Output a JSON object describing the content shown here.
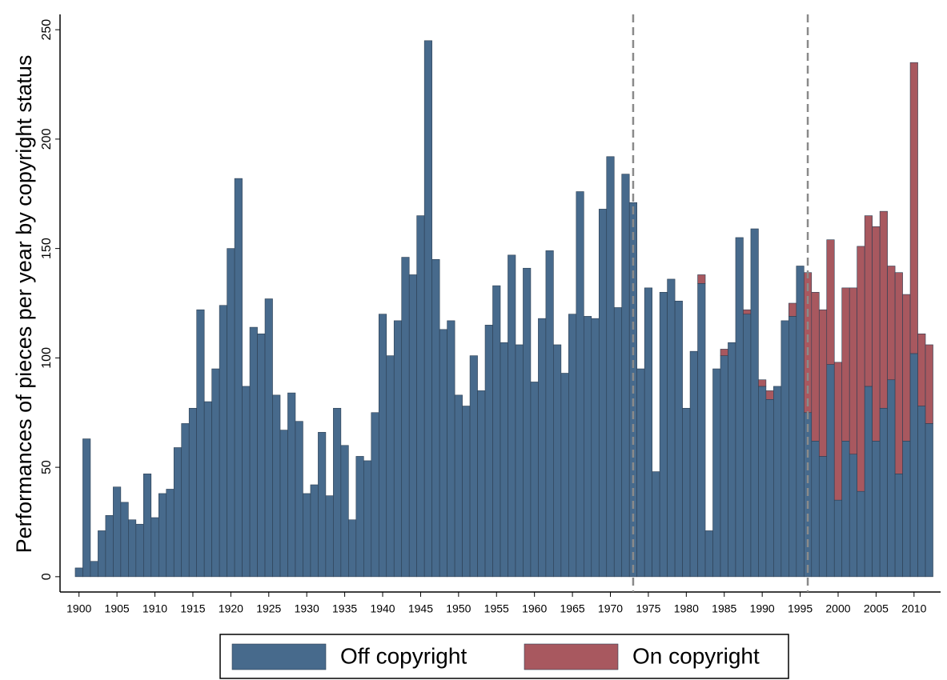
{
  "chart_data": {
    "type": "stacked_bar",
    "ylabel": "Performances of pieces per year by copyright status",
    "x": [
      1900,
      1901,
      1902,
      1903,
      1904,
      1905,
      1906,
      1907,
      1908,
      1909,
      1910,
      1911,
      1912,
      1913,
      1914,
      1915,
      1916,
      1917,
      1918,
      1919,
      1920,
      1921,
      1922,
      1923,
      1924,
      1925,
      1926,
      1927,
      1928,
      1929,
      1930,
      1931,
      1932,
      1933,
      1934,
      1935,
      1936,
      1937,
      1938,
      1939,
      1940,
      1941,
      1942,
      1943,
      1944,
      1945,
      1946,
      1947,
      1948,
      1949,
      1950,
      1951,
      1952,
      1953,
      1954,
      1955,
      1956,
      1957,
      1958,
      1959,
      1960,
      1961,
      1962,
      1963,
      1964,
      1965,
      1966,
      1967,
      1968,
      1969,
      1970,
      1971,
      1972,
      1973,
      1974,
      1975,
      1976,
      1977,
      1978,
      1979,
      1980,
      1981,
      1982,
      1983,
      1984,
      1985,
      1986,
      1987,
      1988,
      1989,
      1990,
      1991,
      1992,
      1993,
      1994,
      1995,
      1996,
      1997,
      1998,
      1999,
      2000,
      2001,
      2002,
      2003,
      2004,
      2005,
      2006,
      2007,
      2008,
      2009,
      2010,
      2011,
      2012
    ],
    "series": [
      {
        "name": "Off copyright",
        "color": "#476a8c",
        "values": [
          4,
          63,
          7,
          21,
          28,
          41,
          34,
          26,
          24,
          47,
          27,
          38,
          40,
          59,
          70,
          77,
          122,
          80,
          95,
          124,
          150,
          182,
          87,
          114,
          111,
          127,
          83,
          67,
          84,
          71,
          38,
          42,
          66,
          37,
          77,
          60,
          26,
          55,
          53,
          75,
          120,
          101,
          117,
          146,
          138,
          165,
          245,
          145,
          113,
          117,
          83,
          78,
          101,
          85,
          115,
          133,
          107,
          147,
          106,
          141,
          89,
          118,
          149,
          106,
          93,
          120,
          176,
          119,
          118,
          168,
          192,
          123,
          184,
          171,
          95,
          132,
          48,
          130,
          136,
          126,
          77,
          103,
          134,
          21,
          95,
          101,
          107,
          155,
          120,
          159,
          87,
          81,
          87,
          117,
          119,
          142,
          75,
          62,
          55,
          97,
          35,
          62,
          56,
          39,
          87,
          62,
          77,
          90,
          47,
          62,
          102,
          78,
          70
        ]
      },
      {
        "name": "On copyright",
        "color": "#a8585f",
        "values": [
          0,
          0,
          0,
          0,
          0,
          0,
          0,
          0,
          0,
          0,
          0,
          0,
          0,
          0,
          0,
          0,
          0,
          0,
          0,
          0,
          0,
          0,
          0,
          0,
          0,
          0,
          0,
          0,
          0,
          0,
          0,
          0,
          0,
          0,
          0,
          0,
          0,
          0,
          0,
          0,
          0,
          0,
          0,
          0,
          0,
          0,
          0,
          0,
          0,
          0,
          0,
          0,
          0,
          0,
          0,
          0,
          0,
          0,
          0,
          0,
          0,
          0,
          0,
          0,
          0,
          0,
          0,
          0,
          0,
          0,
          0,
          0,
          0,
          0,
          0,
          0,
          0,
          0,
          0,
          0,
          0,
          0,
          4,
          0,
          0,
          3,
          0,
          0,
          2,
          0,
          3,
          4,
          0,
          0,
          6,
          0,
          64,
          68,
          67,
          57,
          63,
          70,
          76,
          112,
          78,
          98,
          90,
          52,
          92,
          67,
          133,
          33,
          36
        ]
      }
    ],
    "xlim": [
      1897.5,
      2013.5
    ],
    "xticks": [
      1900,
      1905,
      1910,
      1915,
      1920,
      1925,
      1930,
      1935,
      1940,
      1945,
      1950,
      1955,
      1960,
      1965,
      1970,
      1975,
      1980,
      1985,
      1990,
      1995,
      2000,
      2005,
      2010
    ],
    "ylim": [
      -7,
      257
    ],
    "yticks": [
      0,
      50,
      100,
      150,
      200,
      250
    ],
    "vlines": [
      1973,
      1996
    ],
    "legend": "bottom"
  }
}
